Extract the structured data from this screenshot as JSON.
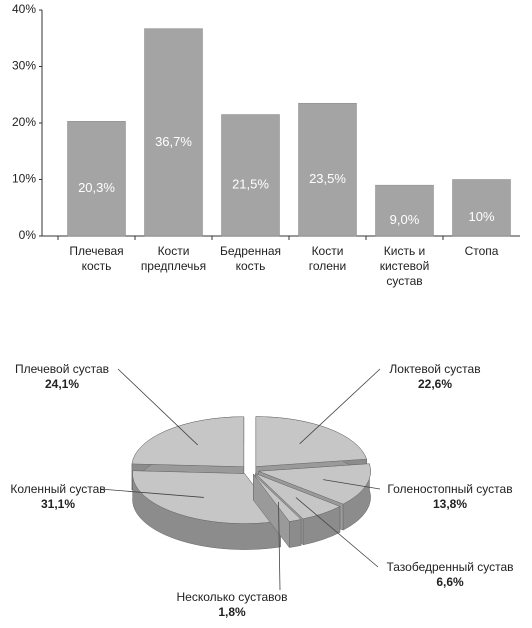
{
  "chart_data": [
    {
      "type": "bar",
      "categories": [
        "Плечевая\nкость",
        "Кости\nпредплечья",
        "Бедренная\nкость",
        "Кости\nголени",
        "Кисть и\nкистевой\nсустав",
        "Стопа"
      ],
      "values": [
        20.3,
        36.7,
        21.5,
        23.5,
        9.0,
        10
      ],
      "value_labels": [
        "20,3%",
        "36,7%",
        "21,5%",
        "23,5%",
        "9,0%",
        "10%"
      ],
      "color": "#a4a4a4",
      "ylim": [
        0,
        40
      ],
      "yticks": [
        {
          "value": 0,
          "label": "0%"
        },
        {
          "value": 10,
          "label": "10%"
        },
        {
          "value": 20,
          "label": "20%"
        },
        {
          "value": 30,
          "label": "30%"
        },
        {
          "value": 40,
          "label": "40%"
        }
      ]
    },
    {
      "type": "pie",
      "categories": [
        "Локтевой сустав",
        "Голеностопный сустав",
        "Тазобедренный сустав",
        "Несколько суставов",
        "Коленный сустав",
        "Плечевой сустав"
      ],
      "values": [
        22.6,
        13.8,
        6.6,
        1.8,
        31.1,
        24.1
      ],
      "value_labels": [
        "22,6%",
        "13,8%",
        "6,6%",
        "1,8%",
        "31,1%",
        "24,1%"
      ],
      "color": "#c6c6c6"
    }
  ]
}
